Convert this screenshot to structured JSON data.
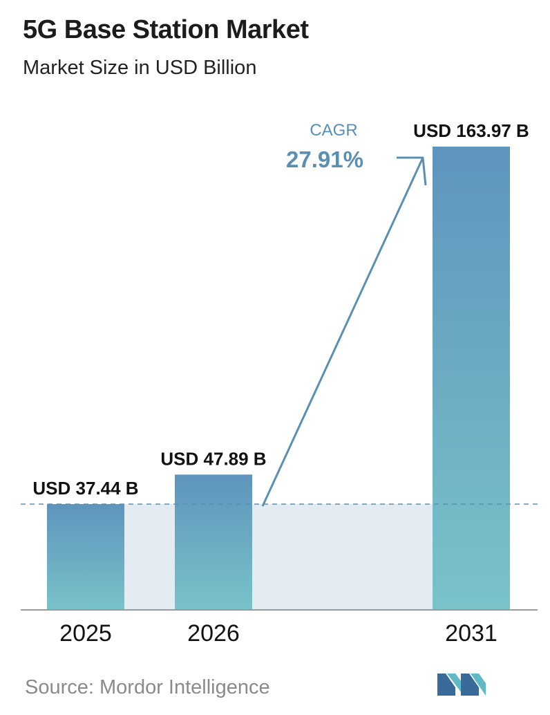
{
  "chart_data": {
    "type": "bar",
    "title": "5G Base Station Market",
    "subtitle": "Market Size in USD Billion",
    "categories": [
      "2025",
      "2026",
      "2031"
    ],
    "values": [
      37.44,
      47.89,
      163.97
    ],
    "value_labels": [
      "USD 37.44 B",
      "USD 47.89 B",
      "USD 163.97 B"
    ],
    "unit": "USD Billion",
    "annotation": {
      "label": "CAGR",
      "value": "27.91%"
    },
    "reference_line_value": 37.44,
    "ylim": [
      0,
      163.97
    ],
    "grid": false,
    "legend": "none",
    "colors": {
      "bar_top": "#5f94bd",
      "bar_bottom": "#79c3c9",
      "band": "#e3ebf3",
      "arrow": "#5a8fb1"
    }
  },
  "source": "Source:  Mordor Intelligence",
  "logo": {
    "icon": "mordor-intelligence-logo-icon"
  }
}
